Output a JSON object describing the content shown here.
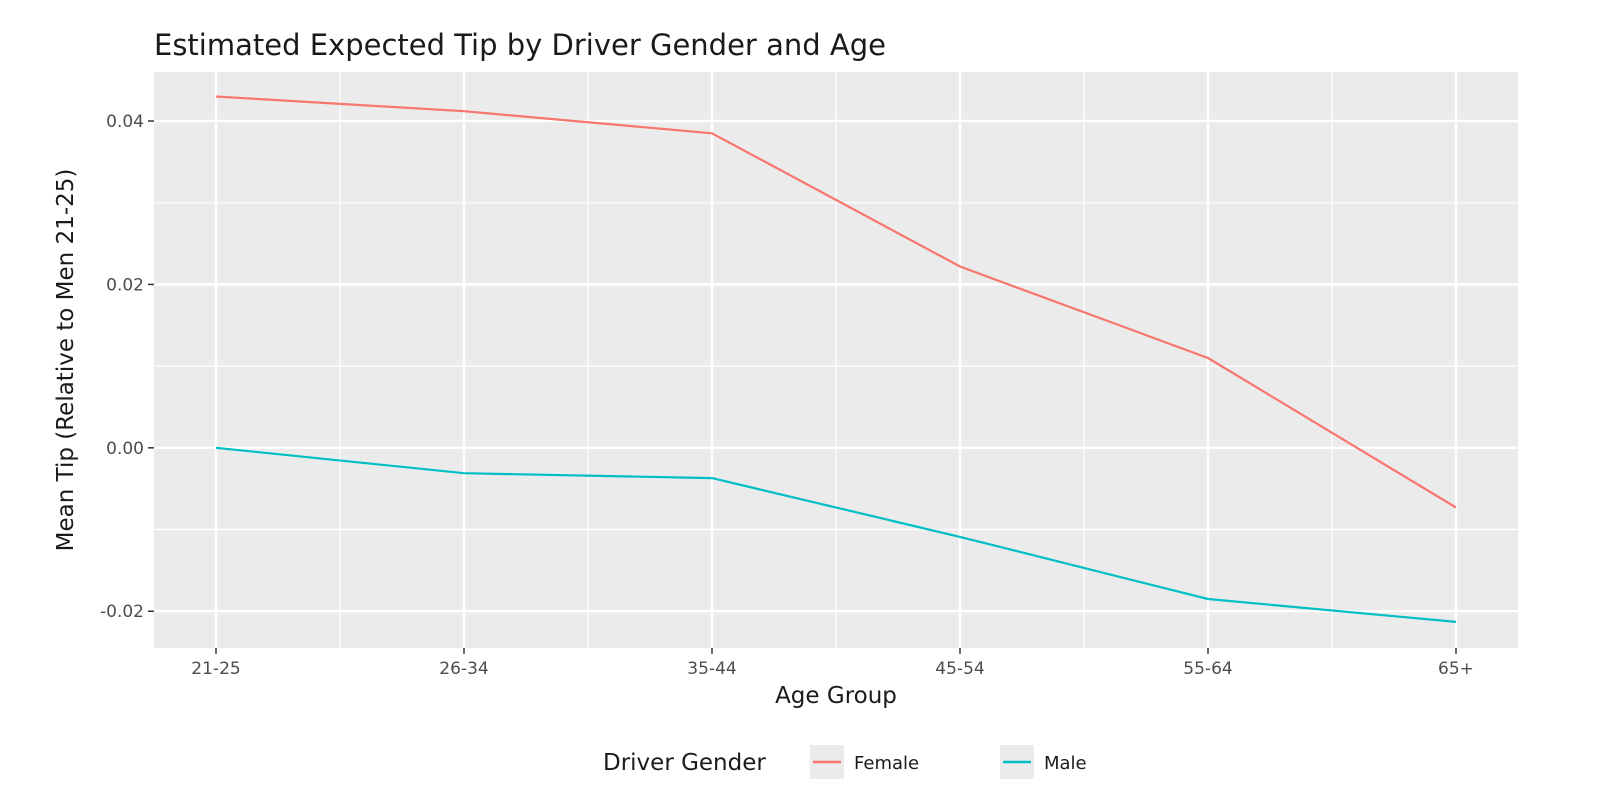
{
  "chart_data": {
    "type": "line",
    "title": "Estimated Expected Tip by Driver Gender and Age",
    "xlabel": "Age Group",
    "ylabel": "Mean Tip (Relative to Men 21-25)",
    "categories": [
      "21-25",
      "26-34",
      "35-44",
      "45-54",
      "55-64",
      "65+"
    ],
    "ylim": [
      -0.0245,
      0.046
    ],
    "yticks": [
      -0.02,
      0.0,
      0.02,
      0.04
    ],
    "ytick_labels": [
      "-0.02",
      "0.00",
      "0.02",
      "0.04"
    ],
    "yminor": [
      -0.01,
      0.01,
      0.03
    ],
    "grid": true,
    "legend": {
      "title": "Driver Gender",
      "position": "bottom"
    },
    "series": [
      {
        "name": "Female",
        "color": "#F8766D",
        "values": [
          0.043,
          0.0412,
          0.0385,
          0.0222,
          0.011,
          -0.0073
        ]
      },
      {
        "name": "Male",
        "color": "#00BFC4",
        "values": [
          0.0,
          -0.0031,
          -0.0037,
          -0.0109,
          -0.0185,
          -0.0213
        ]
      }
    ],
    "panel_color": "#EBEBEB",
    "grid_color": "#FFFFFF"
  }
}
